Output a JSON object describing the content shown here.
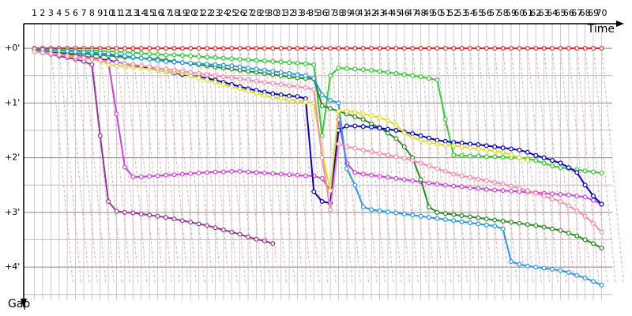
{
  "chart_data": {
    "type": "line",
    "x_label": "Time",
    "y_label": "Gap",
    "x": [
      1,
      2,
      3,
      4,
      5,
      6,
      7,
      8,
      9,
      10,
      11,
      12,
      13,
      14,
      15,
      16,
      17,
      18,
      19,
      20,
      21,
      22,
      23,
      24,
      25,
      26,
      27,
      28,
      29,
      30,
      31,
      32,
      33,
      34,
      35,
      36,
      37,
      38,
      39,
      40,
      41,
      42,
      43,
      44,
      45,
      46,
      47,
      48,
      49,
      50,
      51,
      52,
      53,
      54,
      55,
      56,
      57,
      58,
      59,
      60,
      61,
      62,
      63,
      64,
      65,
      66,
      67,
      68,
      69,
      70
    ],
    "xticks": [
      1,
      2,
      3,
      4,
      5,
      6,
      7,
      8,
      9,
      10,
      11,
      12,
      13,
      14,
      15,
      16,
      17,
      18,
      19,
      20,
      21,
      22,
      23,
      24,
      25,
      26,
      27,
      28,
      29,
      30,
      31,
      32,
      33,
      34,
      35,
      36,
      37,
      38,
      39,
      40,
      41,
      42,
      43,
      44,
      45,
      46,
      47,
      48,
      49,
      50,
      51,
      52,
      53,
      54,
      55,
      56,
      57,
      58,
      59,
      60,
      61,
      62,
      63,
      64,
      65,
      66,
      67,
      68,
      69,
      70
    ],
    "xlim": [
      -0.3,
      71.3
    ],
    "ylim": [
      -0.45,
      4.75
    ],
    "y_inverted": true,
    "yticks": [
      {
        "value": 0,
        "label": "+0'"
      },
      {
        "value": 1,
        "label": "+1'"
      },
      {
        "value": 2,
        "label": "+2'"
      },
      {
        "value": 3,
        "label": "+3'"
      },
      {
        "value": 4,
        "label": "+4'"
      }
    ],
    "minor_yticks": [
      0.5,
      1.5,
      2.5,
      3.5,
      4.5
    ],
    "grid": true,
    "series": [
      {
        "color": "#ee2222",
        "values": [
          0,
          0,
          0,
          0,
          0,
          0,
          0,
          0,
          0,
          0,
          0,
          0,
          0,
          0,
          0,
          0,
          0,
          0,
          0,
          0,
          0,
          0,
          0,
          0,
          0,
          0,
          0,
          0,
          0,
          0,
          0,
          0,
          0,
          0,
          0,
          0,
          0,
          0,
          0,
          0,
          0,
          0,
          0,
          0,
          0,
          0,
          0,
          0,
          0,
          0,
          0,
          0,
          0,
          0,
          0,
          0,
          0,
          0,
          0,
          0,
          0,
          0,
          0,
          0,
          0,
          0,
          0,
          0,
          0,
          0
        ]
      },
      {
        "color": "#993399",
        "values": [
          0.05,
          0.08,
          0.11,
          0.14,
          0.17,
          0.2,
          0.24,
          0.3,
          1.6,
          2.8,
          2.98,
          3.0,
          3.01,
          3.03,
          3.05,
          3.07,
          3.09,
          3.12,
          3.15,
          3.18,
          3.21,
          3.24,
          3.28,
          3.32,
          3.36,
          3.4,
          3.45,
          3.49,
          3.52,
          3.57,
          null,
          null,
          null,
          null,
          null,
          null,
          null,
          null,
          null,
          null,
          null,
          null,
          null,
          null,
          null,
          null,
          null,
          null,
          null,
          null,
          null,
          null,
          null,
          null,
          null,
          null,
          null,
          null,
          null,
          null,
          null,
          null,
          null,
          null,
          null,
          null,
          null,
          null,
          null,
          null
        ]
      },
      {
        "color": "#cc44dd",
        "values": [
          0.03,
          0.05,
          0.07,
          0.09,
          0.11,
          0.13,
          0.15,
          0.17,
          0.2,
          0.25,
          1.2,
          2.17,
          2.35,
          2.35,
          2.34,
          2.33,
          2.32,
          2.31,
          2.3,
          2.29,
          2.28,
          2.27,
          2.26,
          2.26,
          2.25,
          2.25,
          2.26,
          2.27,
          2.28,
          2.29,
          2.3,
          2.31,
          2.32,
          2.33,
          2.33,
          2.38,
          2.6,
          1.3,
          2.1,
          2.27,
          2.3,
          2.32,
          2.34,
          2.36,
          2.38,
          2.4,
          2.42,
          2.44,
          2.46,
          2.48,
          2.5,
          2.52,
          2.53,
          2.55,
          2.56,
          2.58,
          2.59,
          2.6,
          2.61,
          2.62,
          2.63,
          2.64,
          2.65,
          2.66,
          2.67,
          2.68,
          2.7,
          2.72,
          2.78,
          2.85
        ]
      },
      {
        "color": "#33cc33",
        "values": [
          0.02,
          0.02,
          0.03,
          0.03,
          0.03,
          0.04,
          0.04,
          0.04,
          0.05,
          0.05,
          0.06,
          0.07,
          0.08,
          0.09,
          0.1,
          0.11,
          0.12,
          0.12,
          0.13,
          0.14,
          0.15,
          0.16,
          0.17,
          0.18,
          0.19,
          0.2,
          0.21,
          0.22,
          0.23,
          0.24,
          0.25,
          0.26,
          0.27,
          0.28,
          0.3,
          1.6,
          0.5,
          0.36,
          0.37,
          0.38,
          0.39,
          0.4,
          0.42,
          0.44,
          0.46,
          0.48,
          0.5,
          0.52,
          0.55,
          0.58,
          1.3,
          1.95,
          1.96,
          1.97,
          1.97,
          1.98,
          1.98,
          1.99,
          2.0,
          2.0,
          2.02,
          2.05,
          2.1,
          2.15,
          2.18,
          2.2,
          2.22,
          2.24,
          2.26,
          2.28
        ]
      },
      {
        "color": "#228b22",
        "values": [
          0.05,
          0.06,
          0.07,
          0.08,
          0.09,
          0.1,
          0.1,
          0.11,
          0.12,
          0.13,
          0.15,
          0.16,
          0.17,
          0.18,
          0.19,
          0.2,
          0.22,
          0.24,
          0.26,
          0.28,
          0.3,
          0.32,
          0.34,
          0.36,
          0.38,
          0.4,
          0.42,
          0.44,
          0.46,
          0.48,
          0.5,
          0.52,
          0.54,
          0.55,
          0.56,
          1.05,
          1.1,
          1.15,
          1.2,
          1.25,
          1.3,
          1.38,
          1.45,
          1.55,
          1.65,
          1.8,
          2.0,
          2.4,
          2.9,
          3.0,
          3.02,
          3.04,
          3.06,
          3.08,
          3.1,
          3.12,
          3.14,
          3.16,
          3.18,
          3.2,
          3.22,
          3.24,
          3.27,
          3.3,
          3.33,
          3.38,
          3.43,
          3.5,
          3.57,
          3.65
        ]
      },
      {
        "color": "#0000cc",
        "values": [
          0.04,
          0.06,
          0.08,
          0.1,
          0.12,
          0.14,
          0.16,
          0.18,
          0.2,
          0.22,
          0.25,
          0.28,
          0.31,
          0.34,
          0.37,
          0.4,
          0.42,
          0.45,
          0.48,
          0.5,
          0.52,
          0.55,
          0.58,
          0.62,
          0.66,
          0.7,
          0.74,
          0.77,
          0.8,
          0.83,
          0.85,
          0.87,
          0.88,
          0.92,
          2.62,
          2.8,
          2.83,
          1.5,
          1.42,
          1.42,
          1.43,
          1.44,
          1.46,
          1.48,
          1.5,
          1.53,
          1.56,
          1.6,
          1.64,
          1.68,
          1.7,
          1.72,
          1.73,
          1.75,
          1.76,
          1.78,
          1.8,
          1.82,
          1.84,
          1.86,
          1.9,
          1.96,
          2.0,
          2.05,
          2.1,
          2.18,
          2.27,
          2.5,
          2.7,
          2.85
        ]
      },
      {
        "color": "#2299ee",
        "values": [
          0.01,
          0.02,
          0.03,
          0.04,
          0.05,
          0.06,
          0.07,
          0.08,
          0.09,
          0.1,
          0.12,
          0.14,
          0.16,
          0.18,
          0.2,
          0.22,
          0.24,
          0.25,
          0.26,
          0.27,
          0.28,
          0.29,
          0.3,
          0.31,
          0.32,
          0.34,
          0.36,
          0.38,
          0.4,
          0.42,
          0.44,
          0.46,
          0.48,
          0.5,
          0.55,
          0.85,
          0.95,
          1.0,
          2.2,
          2.5,
          2.9,
          2.95,
          2.97,
          2.99,
          3.01,
          3.03,
          3.05,
          3.07,
          3.09,
          3.11,
          3.13,
          3.15,
          3.17,
          3.19,
          3.21,
          3.23,
          3.25,
          3.3,
          3.9,
          3.95,
          3.98,
          4.0,
          4.02,
          4.04,
          4.06,
          4.1,
          4.15,
          4.2,
          4.26,
          4.33
        ]
      },
      {
        "color": "#dddd22",
        "values": [
          0.05,
          0.07,
          0.09,
          0.11,
          0.13,
          0.15,
          0.17,
          0.19,
          0.21,
          0.3,
          0.32,
          0.33,
          0.34,
          0.36,
          0.38,
          0.4,
          0.42,
          0.44,
          0.46,
          0.5,
          0.54,
          0.58,
          0.62,
          0.66,
          0.7,
          0.74,
          0.78,
          0.82,
          0.86,
          0.9,
          0.92,
          0.94,
          0.96,
          0.98,
          1.0,
          1.9,
          2.6,
          1.15,
          1.15,
          1.17,
          1.2,
          1.23,
          1.27,
          1.32,
          1.4,
          1.55,
          1.63,
          1.68,
          1.72,
          1.75,
          1.77,
          1.78,
          1.8,
          1.82,
          1.84,
          1.86,
          1.88,
          1.9,
          1.95,
          2.0,
          2.05,
          null,
          null,
          null,
          null,
          null,
          null,
          null,
          null,
          null
        ]
      },
      {
        "color": "#ff88aa",
        "values": [
          0.06,
          0.08,
          0.1,
          0.12,
          0.14,
          0.16,
          0.18,
          0.2,
          0.22,
          0.24,
          0.26,
          0.28,
          0.3,
          0.32,
          0.34,
          0.36,
          0.38,
          0.4,
          0.42,
          0.44,
          0.46,
          0.48,
          0.5,
          0.52,
          0.54,
          0.56,
          0.58,
          0.6,
          0.62,
          0.64,
          0.66,
          0.68,
          0.7,
          0.72,
          0.75,
          2.0,
          2.95,
          1.75,
          1.8,
          1.83,
          1.86,
          1.89,
          1.92,
          1.95,
          1.98,
          2.01,
          2.05,
          2.1,
          2.15,
          2.2,
          2.25,
          2.3,
          2.33,
          2.36,
          2.39,
          2.42,
          2.45,
          2.48,
          2.52,
          2.56,
          2.6,
          2.65,
          2.7,
          2.75,
          2.8,
          2.88,
          2.97,
          3.07,
          3.2,
          3.36
        ]
      }
    ]
  }
}
